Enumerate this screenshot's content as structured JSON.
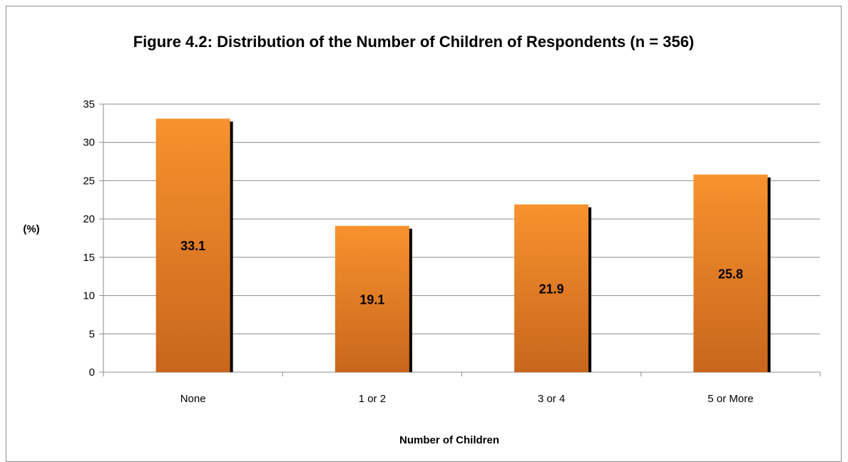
{
  "chart_data": {
    "type": "bar",
    "title": "Figure 4.2: Distribution of the Number of Children of Respondents (n = 356)",
    "xlabel": "Number of Children",
    "ylabel": "(%)",
    "categories": [
      "None",
      "1 or 2",
      "3 or 4",
      "5 or More"
    ],
    "values": [
      33.1,
      19.1,
      21.9,
      25.8
    ],
    "ylim": [
      0,
      35
    ],
    "yticks": [
      0,
      5,
      10,
      15,
      20,
      25,
      30,
      35
    ],
    "grid": true,
    "legend": "none",
    "bar_color_top": "#f7922e",
    "bar_color_bottom": "#c9661c",
    "shadow_color": "#000000",
    "grid_color": "#8c8c8c"
  }
}
